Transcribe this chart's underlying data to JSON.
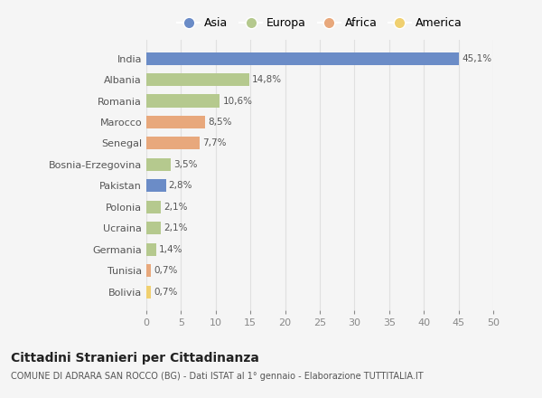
{
  "categories": [
    "India",
    "Albania",
    "Romania",
    "Marocco",
    "Senegal",
    "Bosnia-Erzegovina",
    "Pakistan",
    "Polonia",
    "Ucraina",
    "Germania",
    "Tunisia",
    "Bolivia"
  ],
  "values": [
    45.1,
    14.8,
    10.6,
    8.5,
    7.7,
    3.5,
    2.8,
    2.1,
    2.1,
    1.4,
    0.7,
    0.7
  ],
  "labels": [
    "45,1%",
    "14,8%",
    "10,6%",
    "8,5%",
    "7,7%",
    "3,5%",
    "2,8%",
    "2,1%",
    "2,1%",
    "1,4%",
    "0,7%",
    "0,7%"
  ],
  "colors": [
    "#6b8cc7",
    "#b5c98e",
    "#b5c98e",
    "#e8a87c",
    "#e8a87c",
    "#b5c98e",
    "#6b8cc7",
    "#b5c98e",
    "#b5c98e",
    "#b5c98e",
    "#e8a87c",
    "#f0d070"
  ],
  "legend_labels": [
    "Asia",
    "Europa",
    "Africa",
    "America"
  ],
  "legend_colors": [
    "#6b8cc7",
    "#b5c98e",
    "#e8a87c",
    "#f0d070"
  ],
  "xlim": [
    0,
    50
  ],
  "xticks": [
    0,
    5,
    10,
    15,
    20,
    25,
    30,
    35,
    40,
    45,
    50
  ],
  "title": "Cittadini Stranieri per Cittadinanza",
  "subtitle": "COMUNE DI ADRARA SAN ROCCO (BG) - Dati ISTAT al 1° gennaio - Elaborazione TUTTITALIA.IT",
  "bg_color": "#f5f5f5",
  "grid_color": "#e0e0e0"
}
